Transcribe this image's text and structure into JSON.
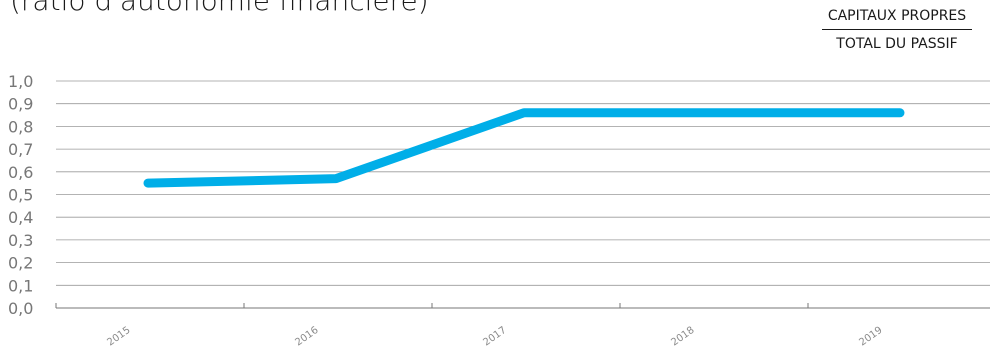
{
  "chart_data": {
    "type": "line",
    "title": "(ratio d'autonomie financière)",
    "ratio_numerator": "CAPITAUX PROPRES",
    "ratio_denominator": "TOTAL DU PASSIF",
    "categories": [
      "2015",
      "2016",
      "2017",
      "2018",
      "2019"
    ],
    "series": [
      {
        "values": [
          0.55,
          0.57,
          0.86,
          0.86,
          0.86
        ]
      }
    ],
    "ylim": [
      0,
      1
    ],
    "yticks": [
      "0,0",
      "0,1",
      "0,2",
      "0,3",
      "0,4",
      "0,5",
      "0,6",
      "0,7",
      "0,8",
      "0,9",
      "1,0"
    ],
    "xlabel": "",
    "ylabel": "",
    "grid": true,
    "line_color": "#00aee8",
    "grid_color": "#9a9a9a"
  }
}
